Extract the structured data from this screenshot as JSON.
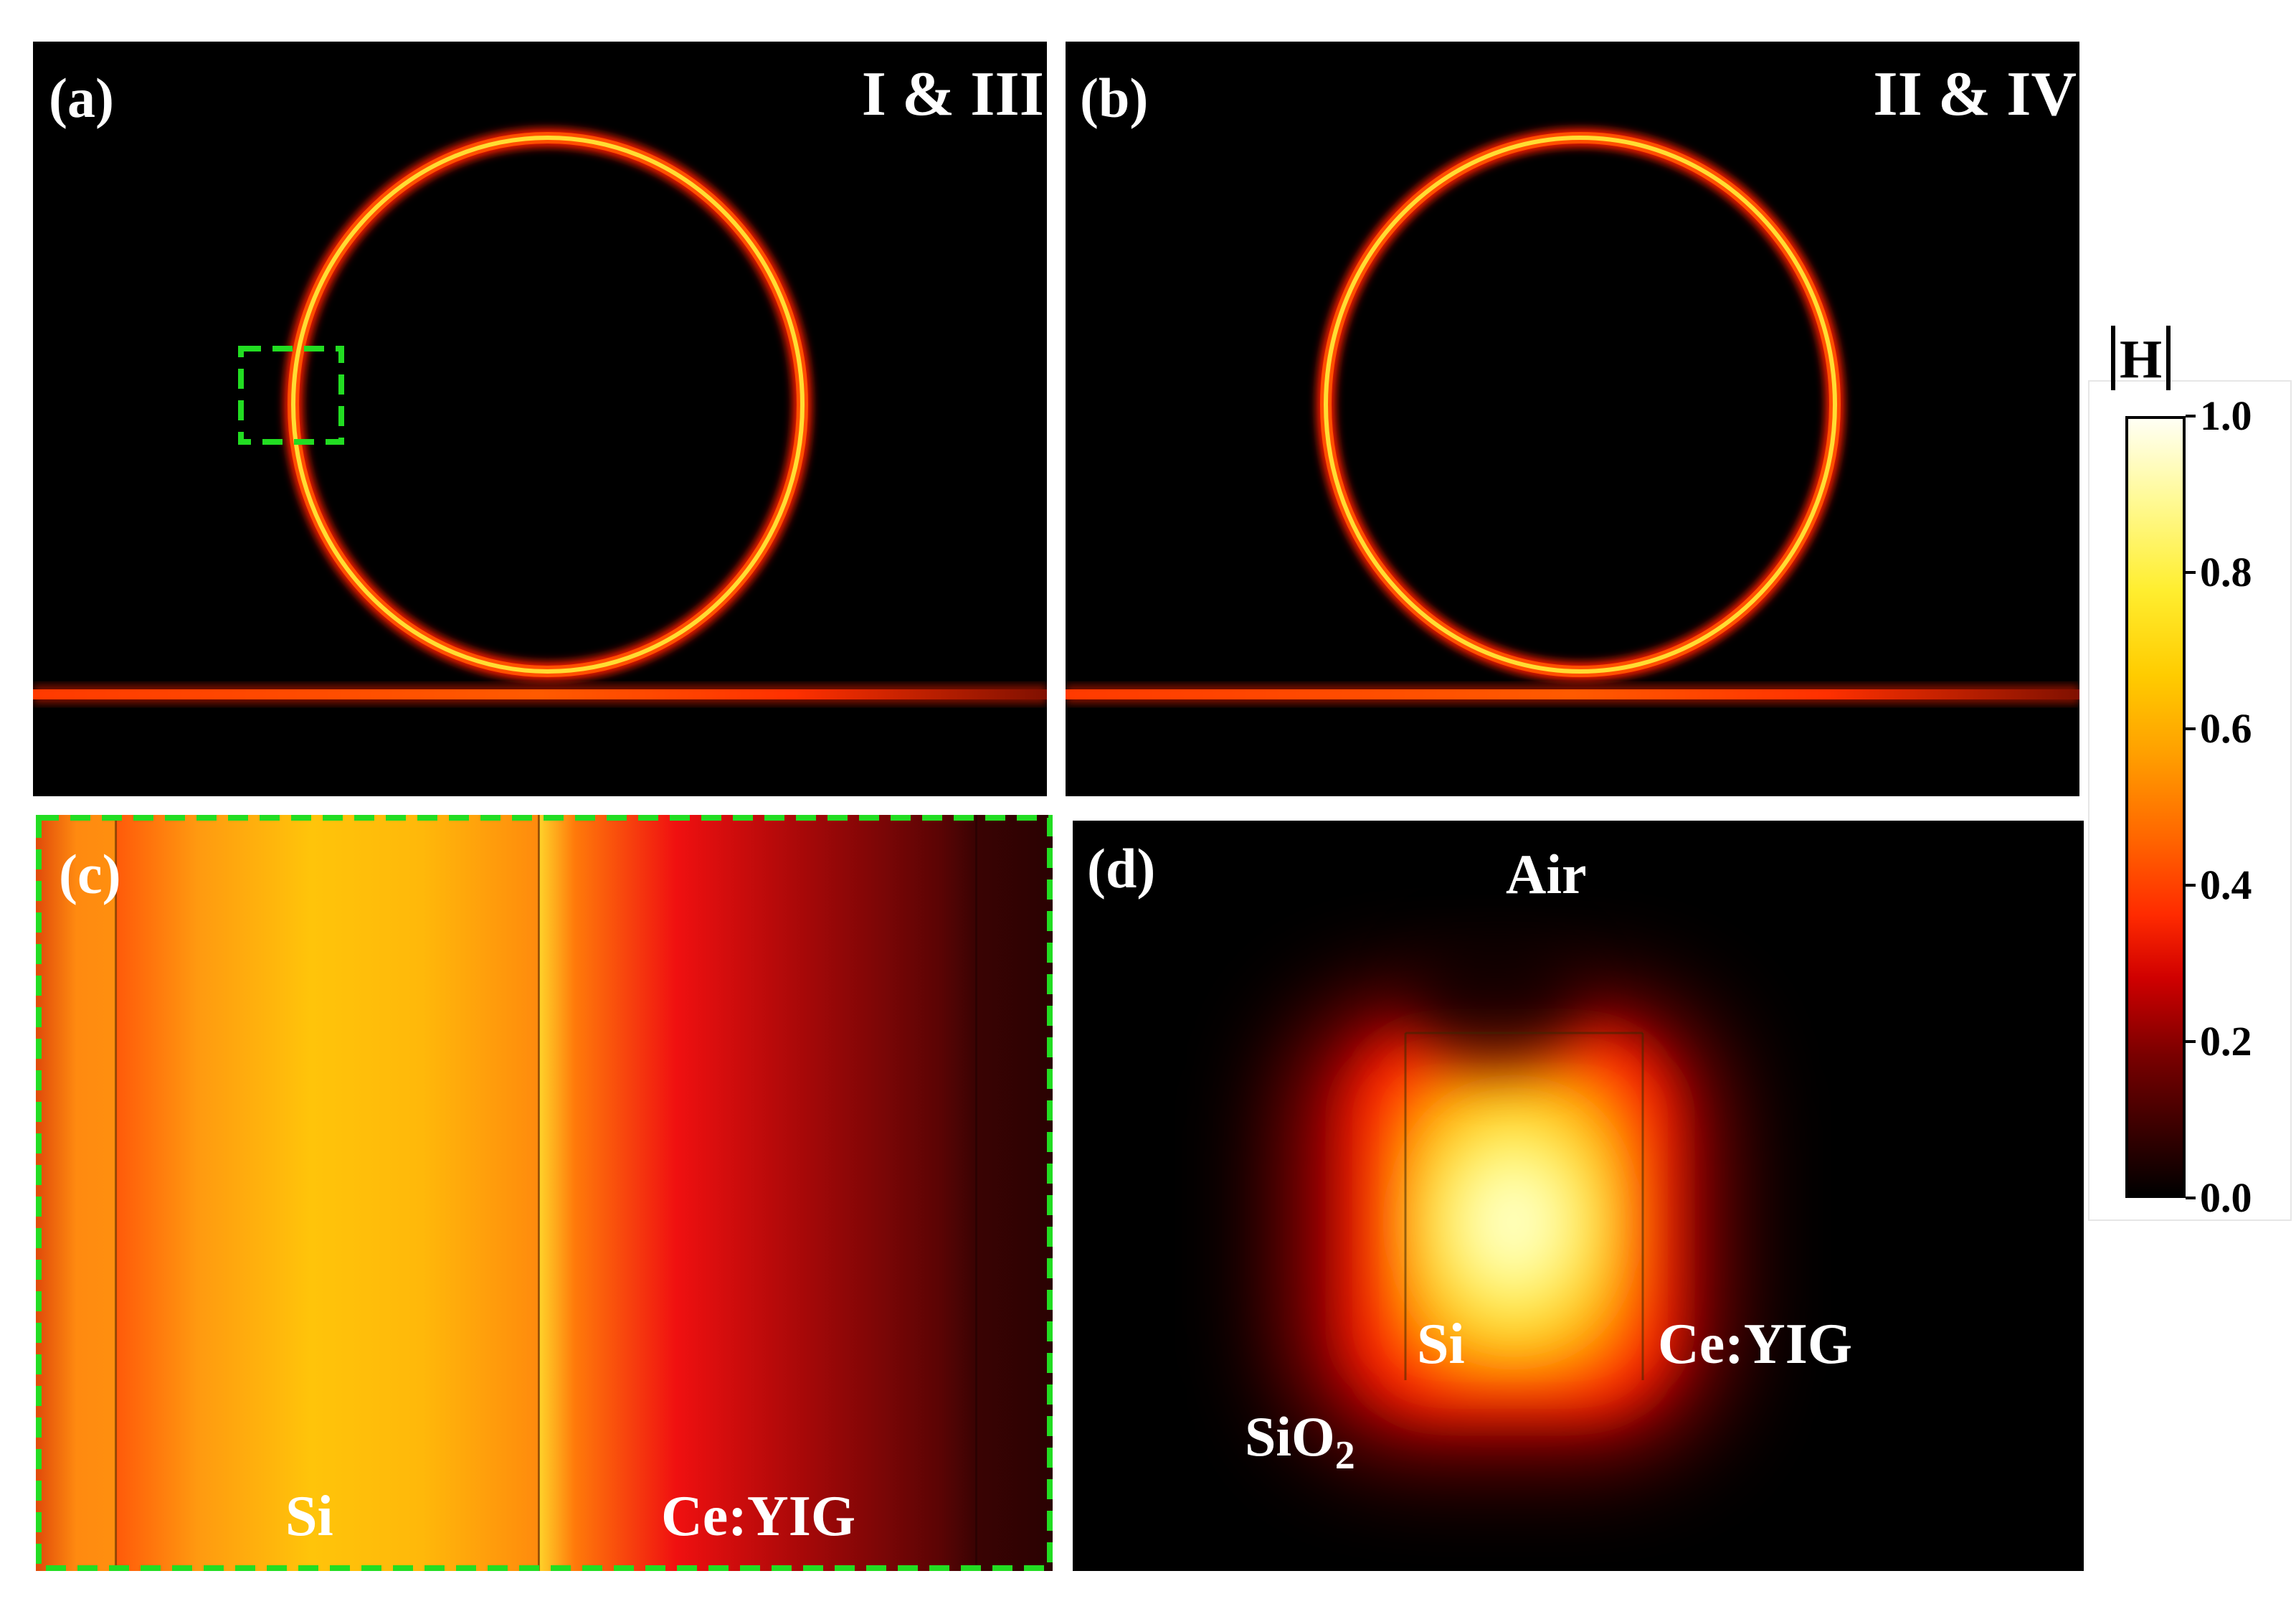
{
  "panels": {
    "a": {
      "label": "(a)",
      "mode": "I & III"
    },
    "b": {
      "label": "(b)",
      "mode": "II & IV"
    },
    "c": {
      "label": "(c)",
      "materials": [
        "Si",
        "Ce:YIG"
      ]
    },
    "d": {
      "label": "(d)",
      "materials": [
        "Air",
        "Si",
        "Ce:YIG",
        "SiO",
        "2"
      ]
    }
  },
  "colorbar": {
    "title": "H",
    "ticks": [
      "1.0",
      "0.8",
      "0.6",
      "0.4",
      "0.2",
      "0.0"
    ],
    "range": [
      0,
      1
    ]
  },
  "colors": {
    "zoom_box": "#22dd22",
    "ring_core": "#ffdd33",
    "ring_edge": "#ff2a00",
    "background": "#000000"
  }
}
